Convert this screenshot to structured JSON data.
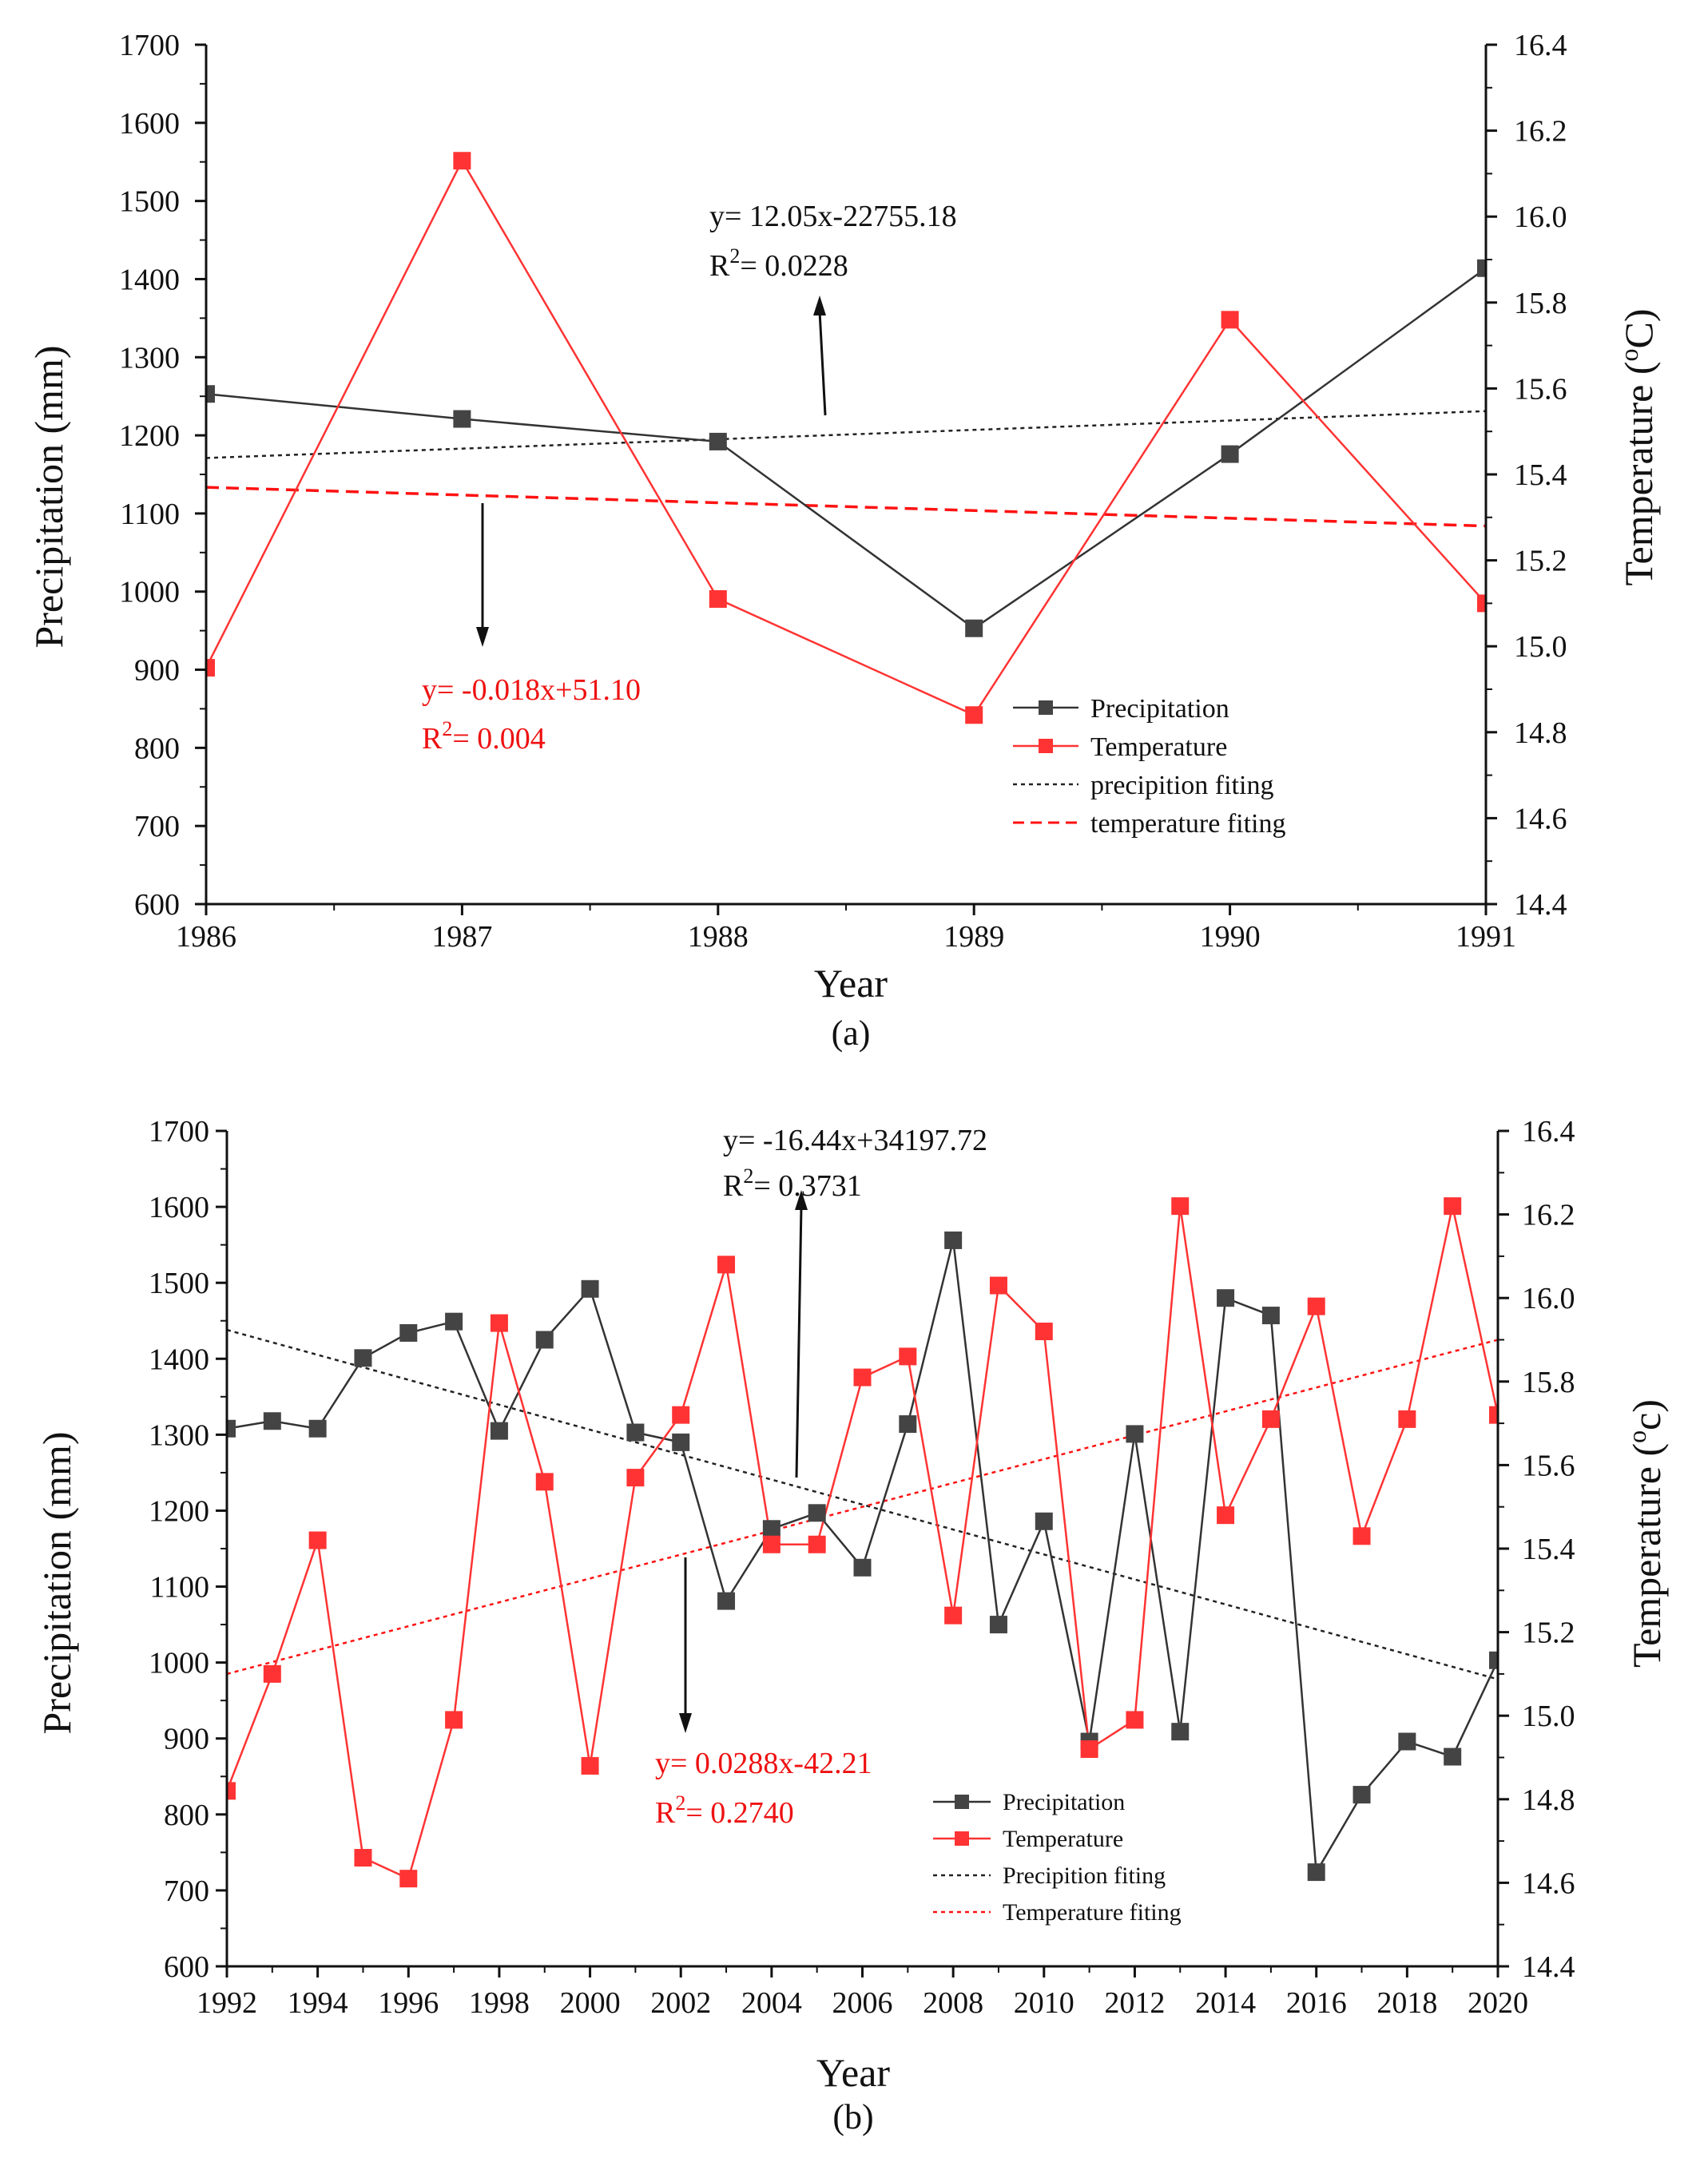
{
  "chart_data": [
    {
      "id": "a",
      "type": "line",
      "panel_label": "(a)",
      "xlabel": "Year",
      "ylabel": "Precipitation (mm)",
      "y2label": "Temperature (°C)",
      "y2label_main": "Temperature (",
      "y2label_sup": "o",
      "y2label_end": "C)",
      "xlim": [
        1986,
        1991
      ],
      "ylim": [
        600,
        1700
      ],
      "y2lim": [
        14.4,
        16.4
      ],
      "x_ticks": [
        1986,
        1987,
        1988,
        1989,
        1990,
        1991
      ],
      "y_ticks": [
        600,
        700,
        800,
        900,
        1000,
        1100,
        1200,
        1300,
        1400,
        1500,
        1600,
        1700
      ],
      "y2_ticks": [
        "14.4",
        "14.6",
        "14.8",
        "15.0",
        "15.2",
        "15.4",
        "15.6",
        "15.8",
        "16.0",
        "16.2",
        "16.4"
      ],
      "years": [
        1986,
        1987,
        1988,
        1989,
        1990,
        1991
      ],
      "series": [
        {
          "name": "Precipitation",
          "axis": "left",
          "color": "#333333",
          "values": [
            1253,
            1221,
            1192,
            953,
            1176,
            1414
          ]
        },
        {
          "name": "Temperature",
          "axis": "right",
          "color": "#ff3333",
          "values": [
            14.95,
            16.13,
            15.11,
            14.84,
            15.76,
            15.1
          ]
        }
      ],
      "fits": [
        {
          "name": "precipition fiting",
          "axis": "left",
          "color": "#222222",
          "style": "dotted",
          "x": [
            1986,
            1991
          ],
          "y": [
            1171,
            1231
          ]
        },
        {
          "name": "temperature fiting",
          "axis": "right",
          "color": "#ff1111",
          "style": "dashed",
          "x": [
            1986,
            1991
          ],
          "y": [
            15.37,
            15.28
          ]
        }
      ],
      "legend": [
        "Precipitation",
        "Temperature",
        "precipition fiting",
        "temperature fiting"
      ],
      "annotations": {
        "black_eq": "y= 12.05x-22755.18",
        "black_r2_pre": "R",
        "black_r2_sup": "2",
        "black_r2_val": "= 0.0228",
        "red_eq": "y= -0.018x+51.10",
        "red_r2_pre": "R",
        "red_r2_sup": "2",
        "red_r2_val": "= 0.004"
      }
    },
    {
      "id": "b",
      "type": "line",
      "panel_label": "(b)",
      "xlabel": "Year",
      "ylabel": "Precipitation (mm)",
      "y2label": "Temperature (°c)",
      "y2label_main": "Temperature (",
      "y2label_sup": "o",
      "y2label_end": "c)",
      "xlim": [
        1992,
        2020
      ],
      "ylim": [
        600,
        1700
      ],
      "y2lim": [
        14.4,
        16.4
      ],
      "x_ticks": [
        1992,
        1994,
        1996,
        1998,
        2000,
        2002,
        2004,
        2006,
        2008,
        2010,
        2012,
        2014,
        2016,
        2018,
        2020
      ],
      "y_ticks": [
        600,
        700,
        800,
        900,
        1000,
        1100,
        1200,
        1300,
        1400,
        1500,
        1600,
        1700
      ],
      "y2_ticks": [
        "14.4",
        "14.6",
        "14.8",
        "15.0",
        "15.2",
        "15.4",
        "15.6",
        "15.8",
        "16.0",
        "16.2",
        "16.4"
      ],
      "years": [
        1992,
        1993,
        1994,
        1995,
        1996,
        1997,
        1998,
        1999,
        2000,
        2001,
        2002,
        2003,
        2004,
        2005,
        2006,
        2007,
        2008,
        2009,
        2010,
        2011,
        2012,
        2013,
        2014,
        2015,
        2016,
        2017,
        2018,
        2019,
        2020
      ],
      "series": [
        {
          "name": "Precipitation",
          "axis": "left",
          "color": "#333333",
          "values": [
            1308,
            1318,
            1308,
            1401,
            1434,
            1449,
            1305,
            1425,
            1492,
            1303,
            1290,
            1081,
            1176,
            1197,
            1125,
            1314,
            1556,
            1050,
            1186,
            896,
            1301,
            909,
            1480,
            1457,
            724,
            826,
            896,
            876,
            1003
          ]
        },
        {
          "name": "Temperature",
          "axis": "right",
          "color": "#ff3333",
          "values": [
            14.82,
            15.1,
            15.42,
            14.66,
            14.61,
            14.99,
            15.94,
            15.56,
            14.88,
            15.57,
            15.72,
            16.08,
            15.41,
            15.41,
            15.81,
            15.86,
            15.24,
            16.03,
            15.92,
            14.92,
            14.99,
            16.22,
            15.48,
            15.71,
            15.98,
            15.43,
            15.71,
            16.22,
            15.72
          ]
        }
      ],
      "fits": [
        {
          "name": "Precipition fiting",
          "axis": "left",
          "color": "#222222",
          "style": "dotted",
          "x": [
            1992,
            2020
          ],
          "y": [
            1438,
            978
          ]
        },
        {
          "name": "Temperature fiting",
          "axis": "right",
          "color": "#ff1111",
          "style": "dotted",
          "x": [
            1992,
            2020
          ],
          "y": [
            15.1,
            15.9
          ]
        }
      ],
      "legend": [
        "Precipitation",
        "Temperature",
        "Precipition fiting",
        "Temperature fiting"
      ],
      "annotations": {
        "black_eq": "y= -16.44x+34197.72",
        "black_r2_pre": "R",
        "black_r2_sup": "2",
        "black_r2_val": "= 0.3731",
        "red_eq": "y= 0.0288x-42.21",
        "red_r2_pre": "R",
        "red_r2_sup": "2",
        "red_r2_val": "= 0.2740"
      }
    }
  ]
}
